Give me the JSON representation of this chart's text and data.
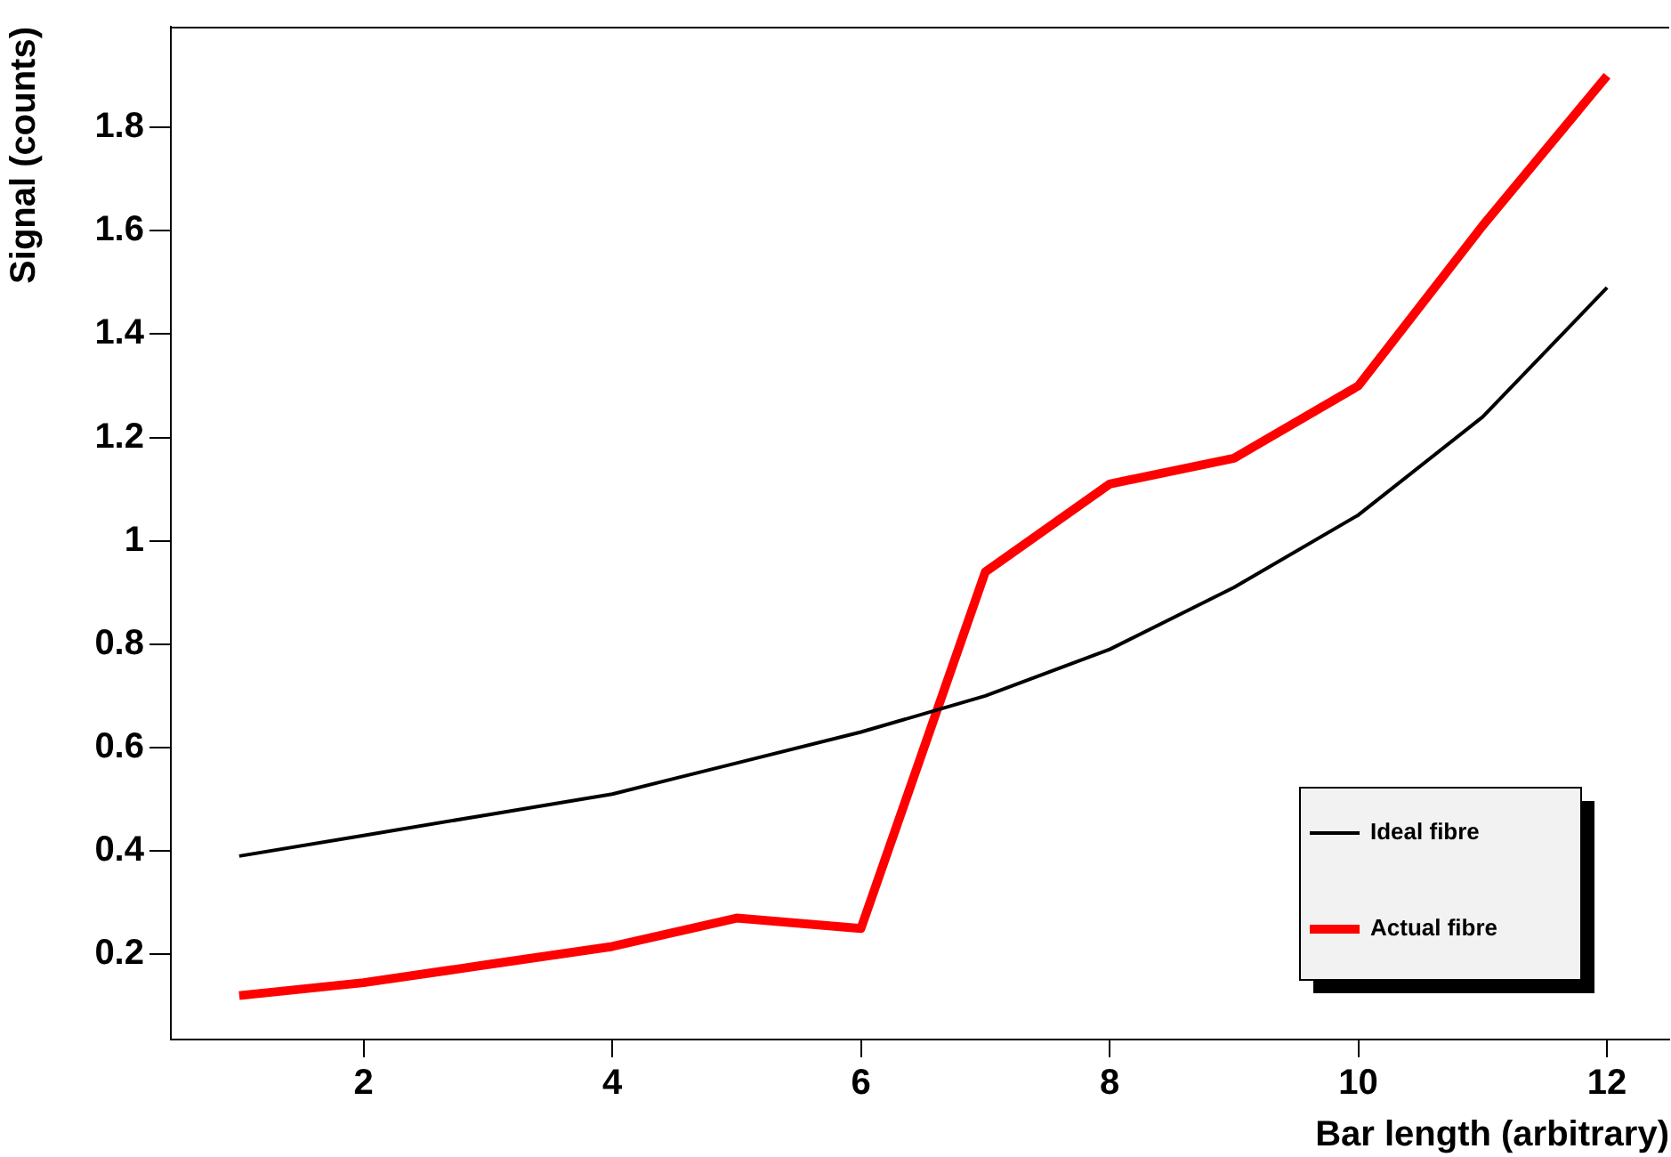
{
  "chart_data": {
    "type": "line",
    "xlabel": "Bar length (arbitrary)",
    "ylabel": "Signal (counts)",
    "x": [
      1,
      2,
      3,
      4,
      5,
      6,
      7,
      8,
      9,
      10,
      11,
      12
    ],
    "series": [
      {
        "name": "Ideal fibre",
        "color": "#000000",
        "values": [
          0.39,
          0.43,
          0.47,
          0.51,
          0.57,
          0.63,
          0.7,
          0.79,
          0.91,
          1.05,
          1.24,
          1.49
        ]
      },
      {
        "name": "Actual fibre",
        "color": "#ff0000",
        "values": [
          0.12,
          0.145,
          0.18,
          0.215,
          0.27,
          0.25,
          0.94,
          1.11,
          1.16,
          1.3,
          1.61,
          1.9
        ]
      }
    ],
    "xlim": [
      0.45,
      12.5
    ],
    "xticks": [
      2,
      4,
      6,
      8,
      10,
      12
    ],
    "ylim": [
      0.035,
      1.995
    ],
    "yticks": [
      0.2,
      0.4,
      0.6,
      0.8,
      1,
      1.2,
      1.4,
      1.6,
      1.8
    ],
    "grid": false,
    "legend": "bottom right",
    "marker": "none",
    "line_style": "solid"
  }
}
